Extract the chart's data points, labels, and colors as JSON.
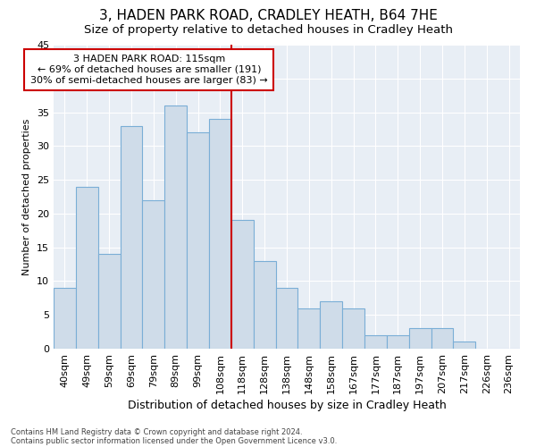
{
  "title": "3, HADEN PARK ROAD, CRADLEY HEATH, B64 7HE",
  "subtitle": "Size of property relative to detached houses in Cradley Heath",
  "xlabel": "Distribution of detached houses by size in Cradley Heath",
  "ylabel": "Number of detached properties",
  "footnote1": "Contains HM Land Registry data © Crown copyright and database right 2024.",
  "footnote2": "Contains public sector information licensed under the Open Government Licence v3.0.",
  "bar_labels": [
    "40sqm",
    "49sqm",
    "59sqm",
    "69sqm",
    "79sqm",
    "89sqm",
    "99sqm",
    "108sqm",
    "118sqm",
    "128sqm",
    "138sqm",
    "148sqm",
    "158sqm",
    "167sqm",
    "177sqm",
    "187sqm",
    "197sqm",
    "207sqm",
    "217sqm",
    "226sqm",
    "236sqm"
  ],
  "bar_values": [
    9,
    24,
    14,
    33,
    22,
    36,
    32,
    34,
    19,
    13,
    9,
    6,
    7,
    6,
    2,
    2,
    3,
    3,
    1,
    0,
    0
  ],
  "bar_color": "#cfdce9",
  "bar_edgecolor": "#7aaed6",
  "vline_color": "#cc0000",
  "annotation_text": "3 HADEN PARK ROAD: 115sqm\n← 69% of detached houses are smaller (191)\n30% of semi-detached houses are larger (83) →",
  "annotation_box_facecolor": "#ffffff",
  "annotation_box_edgecolor": "#cc0000",
  "ylim": [
    0,
    45
  ],
  "yticks": [
    0,
    5,
    10,
    15,
    20,
    25,
    30,
    35,
    40,
    45
  ],
  "plot_bg_color": "#e8eef5",
  "grid_color": "#ffffff",
  "title_fontsize": 11,
  "subtitle_fontsize": 9.5,
  "xlabel_fontsize": 9,
  "ylabel_fontsize": 8,
  "tick_fontsize": 8,
  "annot_fontsize": 8
}
